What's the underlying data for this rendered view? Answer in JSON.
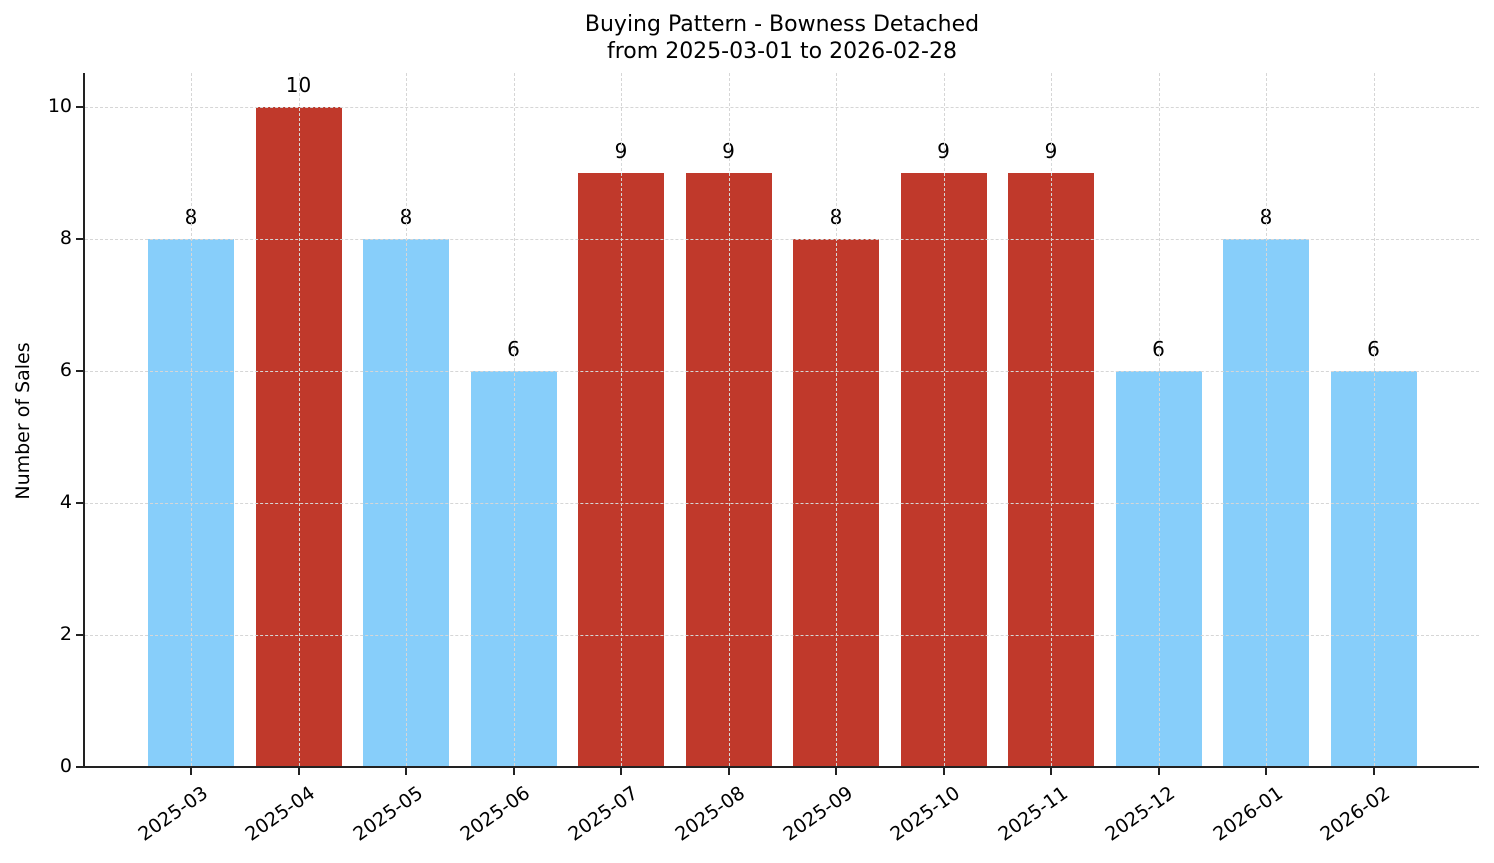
{
  "chart_data": {
    "type": "bar",
    "title": "Buying Pattern - Bowness Detached",
    "subtitle": "from 2025-03-01 to 2026-02-28",
    "xlabel": "",
    "ylabel": "Number of Sales",
    "ylim": [
      0,
      10.5
    ],
    "yticks": [
      0,
      2,
      4,
      6,
      8,
      10
    ],
    "grid": true,
    "legend": null,
    "categories": [
      "2025-03",
      "2025-04",
      "2025-05",
      "2025-06",
      "2025-07",
      "2025-08",
      "2025-09",
      "2025-10",
      "2025-11",
      "2025-12",
      "2026-01",
      "2026-02"
    ],
    "values": [
      8,
      10,
      8,
      6,
      9,
      9,
      8,
      9,
      9,
      6,
      8,
      6
    ],
    "bar_colors": [
      "#87cefa",
      "#c0392b",
      "#87cefa",
      "#87cefa",
      "#c0392b",
      "#c0392b",
      "#c0392b",
      "#c0392b",
      "#c0392b",
      "#87cefa",
      "#87cefa",
      "#87cefa"
    ],
    "data_labels": [
      "8",
      "10",
      "8",
      "6",
      "9",
      "9",
      "8",
      "9",
      "9",
      "6",
      "8",
      "6"
    ]
  },
  "colors": {
    "high": "#c0392b",
    "low": "#87cefa",
    "axis": "#222222",
    "grid": "#d6d6d6"
  }
}
